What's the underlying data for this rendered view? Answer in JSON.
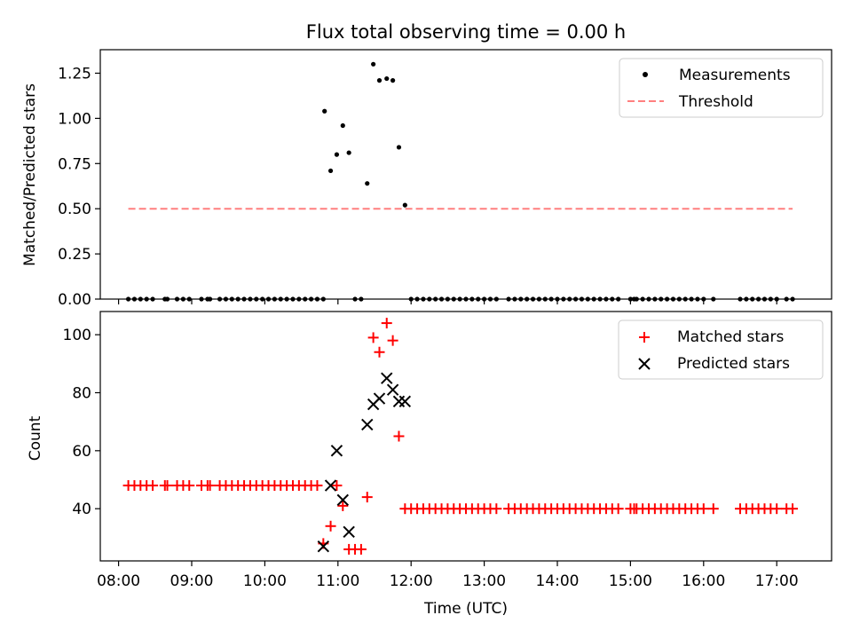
{
  "figure": {
    "title": "Flux total observing time = 0.00 h"
  },
  "chart_data": [
    {
      "type": "scatter",
      "panel": "top",
      "title": "Flux total observing time = 0.00 h",
      "xlabel": "",
      "ylabel": "Matched/Predicted stars",
      "x_unit": "time of day (UTC)",
      "xlim": [
        "07:45",
        "17:45"
      ],
      "ylim": [
        0,
        1.38
      ],
      "yticks": [
        0.0,
        0.25,
        0.5,
        0.75,
        1.0,
        1.25
      ],
      "ytick_labels": [
        "0.00",
        "0.25",
        "0.50",
        "0.75",
        "1.00",
        "1.25"
      ],
      "grid": false,
      "legend": {
        "position": "top-right",
        "entries": [
          "Measurements",
          "Threshold"
        ]
      },
      "series": [
        {
          "name": "Measurements",
          "style": "dot",
          "color": "#000000",
          "points": [
            [
              "08:08",
              0
            ],
            [
              "08:13",
              0
            ],
            [
              "08:18",
              0
            ],
            [
              "08:23",
              0
            ],
            [
              "08:28",
              0
            ],
            [
              "08:38",
              0
            ],
            [
              "08:40",
              0
            ],
            [
              "08:48",
              0
            ],
            [
              "08:53",
              0
            ],
            [
              "08:58",
              0
            ],
            [
              "09:08",
              0
            ],
            [
              "09:13",
              0
            ],
            [
              "09:15",
              0
            ],
            [
              "09:23",
              0
            ],
            [
              "09:28",
              0
            ],
            [
              "09:33",
              0
            ],
            [
              "09:38",
              0
            ],
            [
              "09:43",
              0
            ],
            [
              "09:48",
              0
            ],
            [
              "09:53",
              0
            ],
            [
              "09:58",
              0
            ],
            [
              "10:03",
              0
            ],
            [
              "10:08",
              0
            ],
            [
              "10:13",
              0
            ],
            [
              "10:18",
              0
            ],
            [
              "10:23",
              0
            ],
            [
              "10:28",
              0
            ],
            [
              "10:33",
              0
            ],
            [
              "10:38",
              0
            ],
            [
              "10:43",
              0
            ],
            [
              "10:48",
              0.0
            ],
            [
              "10:49",
              1.04
            ],
            [
              "10:54",
              0.71
            ],
            [
              "10:59",
              0.8
            ],
            [
              "11:04",
              0.96
            ],
            [
              "11:09",
              0.81
            ],
            [
              "11:14",
              0
            ],
            [
              "11:19",
              0
            ],
            [
              "11:24",
              0.64
            ],
            [
              "11:29",
              1.3
            ],
            [
              "11:34",
              1.21
            ],
            [
              "11:40",
              1.22
            ],
            [
              "11:45",
              1.21
            ],
            [
              "11:50",
              0.84
            ],
            [
              "11:55",
              0.52
            ],
            [
              "12:00",
              0
            ],
            [
              "12:05",
              0
            ],
            [
              "12:10",
              0
            ],
            [
              "12:15",
              0
            ],
            [
              "12:20",
              0
            ],
            [
              "12:25",
              0
            ],
            [
              "12:30",
              0
            ],
            [
              "12:35",
              0
            ],
            [
              "12:40",
              0
            ],
            [
              "12:45",
              0
            ],
            [
              "12:50",
              0
            ],
            [
              "12:55",
              0
            ],
            [
              "13:00",
              0
            ],
            [
              "13:05",
              0
            ],
            [
              "13:10",
              0
            ],
            [
              "13:20",
              0
            ],
            [
              "13:25",
              0
            ],
            [
              "13:30",
              0
            ],
            [
              "13:35",
              0
            ],
            [
              "13:40",
              0
            ],
            [
              "13:45",
              0
            ],
            [
              "13:50",
              0
            ],
            [
              "13:55",
              0
            ],
            [
              "14:00",
              0
            ],
            [
              "14:05",
              0
            ],
            [
              "14:10",
              0
            ],
            [
              "14:15",
              0
            ],
            [
              "14:20",
              0
            ],
            [
              "14:25",
              0
            ],
            [
              "14:30",
              0
            ],
            [
              "14:35",
              0
            ],
            [
              "14:40",
              0
            ],
            [
              "14:45",
              0
            ],
            [
              "14:50",
              0
            ],
            [
              "15:00",
              0
            ],
            [
              "15:03",
              0
            ],
            [
              "15:05",
              0
            ],
            [
              "15:10",
              0
            ],
            [
              "15:15",
              0
            ],
            [
              "15:20",
              0
            ],
            [
              "15:25",
              0
            ],
            [
              "15:30",
              0
            ],
            [
              "15:35",
              0
            ],
            [
              "15:40",
              0
            ],
            [
              "15:45",
              0
            ],
            [
              "15:50",
              0
            ],
            [
              "15:55",
              0
            ],
            [
              "16:00",
              0
            ],
            [
              "16:08",
              0
            ],
            [
              "16:30",
              0
            ],
            [
              "16:35",
              0
            ],
            [
              "16:40",
              0
            ],
            [
              "16:45",
              0
            ],
            [
              "16:50",
              0
            ],
            [
              "16:55",
              0
            ],
            [
              "17:00",
              0
            ],
            [
              "17:08",
              0
            ],
            [
              "17:13",
              0
            ]
          ]
        },
        {
          "name": "Threshold",
          "style": "dashed-line",
          "color": "#ff7f7f",
          "points": [
            [
              "08:08",
              0.5
            ],
            [
              "17:13",
              0.5
            ]
          ]
        }
      ]
    },
    {
      "type": "scatter",
      "panel": "bottom",
      "title": "",
      "xlabel": "Time (UTC)",
      "ylabel": "Count",
      "x_unit": "time of day (UTC)",
      "xlim": [
        "07:45",
        "17:45"
      ],
      "ylim": [
        22,
        108
      ],
      "xticks": [
        "08:00",
        "09:00",
        "10:00",
        "11:00",
        "12:00",
        "13:00",
        "14:00",
        "15:00",
        "16:00",
        "17:00"
      ],
      "yticks": [
        40,
        60,
        80,
        100
      ],
      "ytick_labels": [
        "40",
        "60",
        "80",
        "100"
      ],
      "grid": false,
      "legend": {
        "position": "top-right",
        "entries": [
          "Matched stars",
          "Predicted stars"
        ]
      },
      "series": [
        {
          "name": "Matched stars",
          "style": "plus",
          "color": "#ff0000",
          "points": [
            [
              "08:08",
              48
            ],
            [
              "08:13",
              48
            ],
            [
              "08:18",
              48
            ],
            [
              "08:23",
              48
            ],
            [
              "08:28",
              48
            ],
            [
              "08:38",
              48
            ],
            [
              "08:40",
              48
            ],
            [
              "08:48",
              48
            ],
            [
              "08:53",
              48
            ],
            [
              "08:58",
              48
            ],
            [
              "09:08",
              48
            ],
            [
              "09:13",
              48
            ],
            [
              "09:15",
              48
            ],
            [
              "09:23",
              48
            ],
            [
              "09:28",
              48
            ],
            [
              "09:33",
              48
            ],
            [
              "09:38",
              48
            ],
            [
              "09:43",
              48
            ],
            [
              "09:48",
              48
            ],
            [
              "09:53",
              48
            ],
            [
              "09:58",
              48
            ],
            [
              "10:03",
              48
            ],
            [
              "10:08",
              48
            ],
            [
              "10:13",
              48
            ],
            [
              "10:18",
              48
            ],
            [
              "10:23",
              48
            ],
            [
              "10:28",
              48
            ],
            [
              "10:33",
              48
            ],
            [
              "10:38",
              48
            ],
            [
              "10:43",
              48
            ],
            [
              "10:48",
              28
            ],
            [
              "10:54",
              34
            ],
            [
              "10:59",
              48
            ],
            [
              "11:04",
              41
            ],
            [
              "11:09",
              26
            ],
            [
              "11:14",
              26
            ],
            [
              "11:19",
              26
            ],
            [
              "11:24",
              44
            ],
            [
              "11:29",
              99
            ],
            [
              "11:34",
              94
            ],
            [
              "11:40",
              104
            ],
            [
              "11:45",
              98
            ],
            [
              "11:50",
              65
            ],
            [
              "11:55",
              40
            ],
            [
              "12:00",
              40
            ],
            [
              "12:05",
              40
            ],
            [
              "12:10",
              40
            ],
            [
              "12:15",
              40
            ],
            [
              "12:20",
              40
            ],
            [
              "12:25",
              40
            ],
            [
              "12:30",
              40
            ],
            [
              "12:35",
              40
            ],
            [
              "12:40",
              40
            ],
            [
              "12:45",
              40
            ],
            [
              "12:50",
              40
            ],
            [
              "12:55",
              40
            ],
            [
              "13:00",
              40
            ],
            [
              "13:05",
              40
            ],
            [
              "13:10",
              40
            ],
            [
              "13:20",
              40
            ],
            [
              "13:25",
              40
            ],
            [
              "13:30",
              40
            ],
            [
              "13:35",
              40
            ],
            [
              "13:40",
              40
            ],
            [
              "13:45",
              40
            ],
            [
              "13:50",
              40
            ],
            [
              "13:55",
              40
            ],
            [
              "14:00",
              40
            ],
            [
              "14:05",
              40
            ],
            [
              "14:10",
              40
            ],
            [
              "14:15",
              40
            ],
            [
              "14:20",
              40
            ],
            [
              "14:25",
              40
            ],
            [
              "14:30",
              40
            ],
            [
              "14:35",
              40
            ],
            [
              "14:40",
              40
            ],
            [
              "14:45",
              40
            ],
            [
              "14:50",
              40
            ],
            [
              "15:00",
              40
            ],
            [
              "15:03",
              40
            ],
            [
              "15:05",
              40
            ],
            [
              "15:10",
              40
            ],
            [
              "15:15",
              40
            ],
            [
              "15:20",
              40
            ],
            [
              "15:25",
              40
            ],
            [
              "15:30",
              40
            ],
            [
              "15:35",
              40
            ],
            [
              "15:40",
              40
            ],
            [
              "15:45",
              40
            ],
            [
              "15:50",
              40
            ],
            [
              "15:55",
              40
            ],
            [
              "16:00",
              40
            ],
            [
              "16:08",
              40
            ],
            [
              "16:30",
              40
            ],
            [
              "16:35",
              40
            ],
            [
              "16:40",
              40
            ],
            [
              "16:45",
              40
            ],
            [
              "16:50",
              40
            ],
            [
              "16:55",
              40
            ],
            [
              "17:00",
              40
            ],
            [
              "17:08",
              40
            ],
            [
              "17:13",
              40
            ]
          ]
        },
        {
          "name": "Predicted stars",
          "style": "x",
          "color": "#000000",
          "points": [
            [
              "10:48",
              27
            ],
            [
              "10:54",
              48
            ],
            [
              "10:59",
              60
            ],
            [
              "11:04",
              43
            ],
            [
              "11:09",
              32
            ],
            [
              "11:24",
              69
            ],
            [
              "11:29",
              76
            ],
            [
              "11:34",
              78
            ],
            [
              "11:40",
              85
            ],
            [
              "11:45",
              81
            ],
            [
              "11:50",
              77
            ],
            [
              "11:55",
              77
            ]
          ]
        }
      ]
    }
  ]
}
